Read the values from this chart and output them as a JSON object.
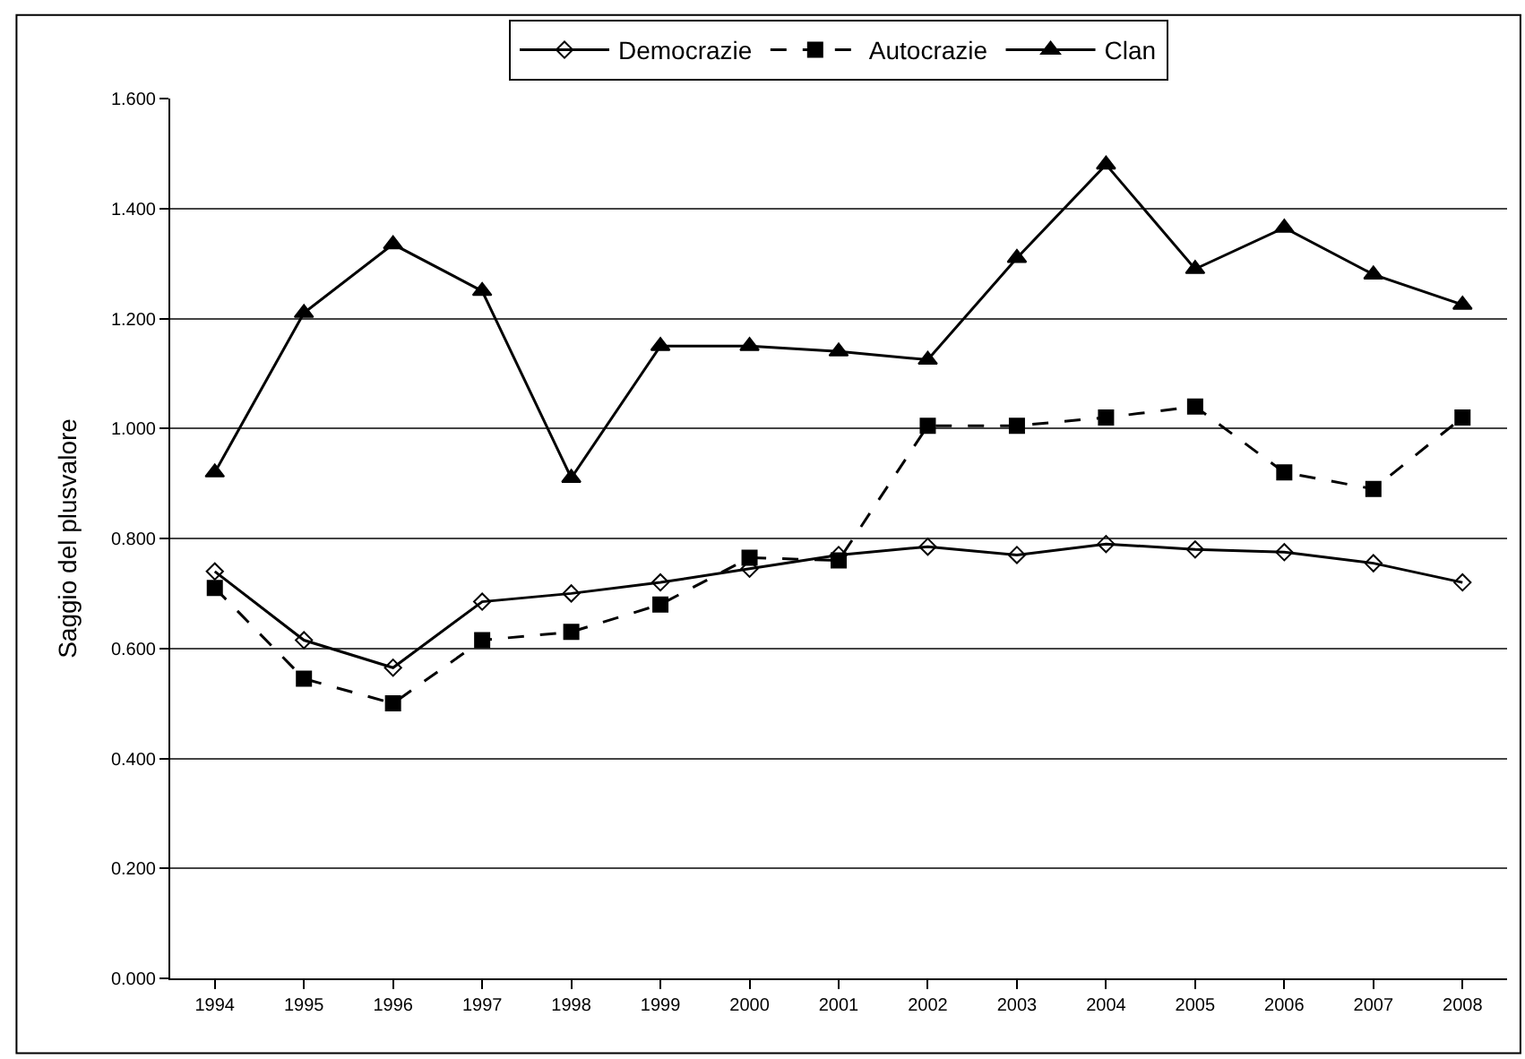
{
  "chart_data": {
    "type": "line",
    "ylabel": "Saggio del plusvalore",
    "categories": [
      "1994",
      "1995",
      "1996",
      "1997",
      "1998",
      "1999",
      "2000",
      "2001",
      "2002",
      "2003",
      "2004",
      "2005",
      "2006",
      "2007",
      "2008"
    ],
    "series": [
      {
        "name": "Democrazie",
        "color": "#000000",
        "marker": "diamond",
        "line_style": "solid",
        "values": [
          0.74,
          0.615,
          0.565,
          0.685,
          0.7,
          0.72,
          0.745,
          0.77,
          0.785,
          0.77,
          0.79,
          0.78,
          0.775,
          0.755,
          0.72
        ]
      },
      {
        "name": "Autocrazie",
        "color": "#000000",
        "marker": "square",
        "line_style": "dashed",
        "values": [
          0.71,
          0.545,
          0.5,
          0.615,
          0.63,
          0.68,
          0.765,
          0.76,
          1.005,
          1.005,
          1.02,
          1.04,
          0.92,
          0.89,
          1.02
        ]
      },
      {
        "name": "Clan",
        "color": "#000000",
        "marker": "triangle",
        "line_style": "solid",
        "values": [
          0.92,
          1.21,
          1.335,
          1.25,
          0.91,
          1.15,
          1.15,
          1.14,
          1.125,
          1.31,
          1.48,
          1.29,
          1.365,
          1.28,
          1.225
        ]
      }
    ],
    "ylim": [
      0,
      1.6
    ],
    "yticks": [
      {
        "value": 0,
        "label": "0.000"
      },
      {
        "value": 0.2,
        "label": "0.200"
      },
      {
        "value": 0.4,
        "label": "0.400"
      },
      {
        "value": 0.6,
        "label": "0.600"
      },
      {
        "value": 0.8,
        "label": "0.800"
      },
      {
        "value": 1.0,
        "label": "1.000"
      },
      {
        "value": 1.2,
        "label": "1.200"
      },
      {
        "value": 1.4,
        "label": "1.400"
      },
      {
        "value": 1.6,
        "label": "1.600"
      }
    ],
    "grid": "y",
    "legend": "top"
  }
}
